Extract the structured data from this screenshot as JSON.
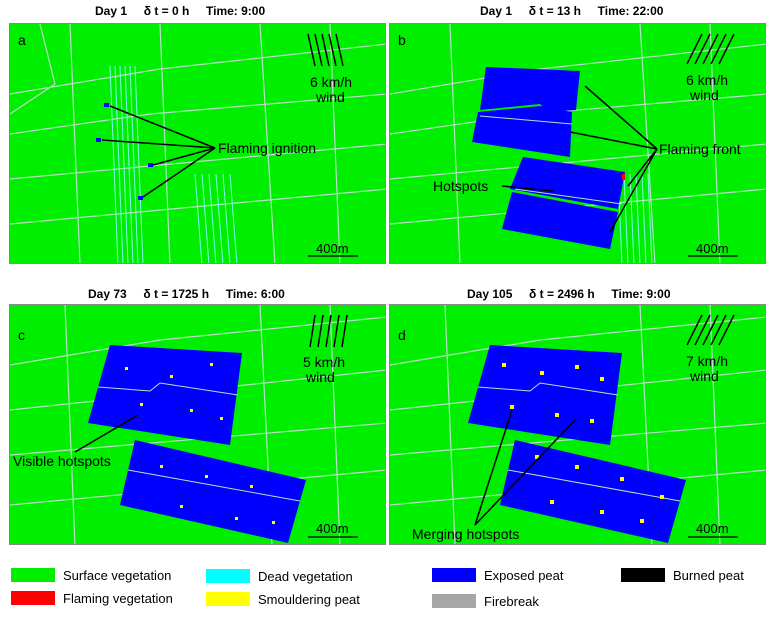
{
  "panels": [
    {
      "letter": "a",
      "day": "Day 1",
      "dt": "δ t = 0 h",
      "time": "Time: 9:00",
      "wind_speed": "6 km/h",
      "wind_word": "wind",
      "annotations": [
        "Flaming ignition"
      ],
      "scale": "400m"
    },
    {
      "letter": "b",
      "day": "Day 1",
      "dt": "δ t = 13 h",
      "time": "Time: 22:00",
      "wind_speed": "6 km/h",
      "wind_word": "wind",
      "annotations": [
        "Flaming front",
        "Hotspots"
      ],
      "scale": "400m"
    },
    {
      "letter": "c",
      "day": "Day 73",
      "dt": "δ t = 1725 h",
      "time": "Time: 6:00",
      "wind_speed": "5 km/h",
      "wind_word": "wind",
      "annotations": [
        "Visible hotspots"
      ],
      "scale": "400m"
    },
    {
      "letter": "d",
      "day": "Day 105",
      "dt": "δ t = 2496 h",
      "time": "Time: 9:00",
      "wind_speed": "7 km/h",
      "wind_word": "wind",
      "annotations": [
        "Merging hotspots"
      ],
      "scale": "400m"
    }
  ],
  "legend": [
    {
      "label": "Surface vegetation",
      "color": "#00ee00"
    },
    {
      "label": "Dead vegetation",
      "color": "#00ffff"
    },
    {
      "label": "Exposed peat",
      "color": "#0000ff"
    },
    {
      "label": "Burned peat",
      "color": "#000000"
    },
    {
      "label": "Flaming vegetation",
      "color": "#ff0000"
    },
    {
      "label": "Smouldering peat",
      "color": "#ffff00"
    },
    {
      "label": "Firebreak",
      "color": "#a6a6a6"
    }
  ]
}
